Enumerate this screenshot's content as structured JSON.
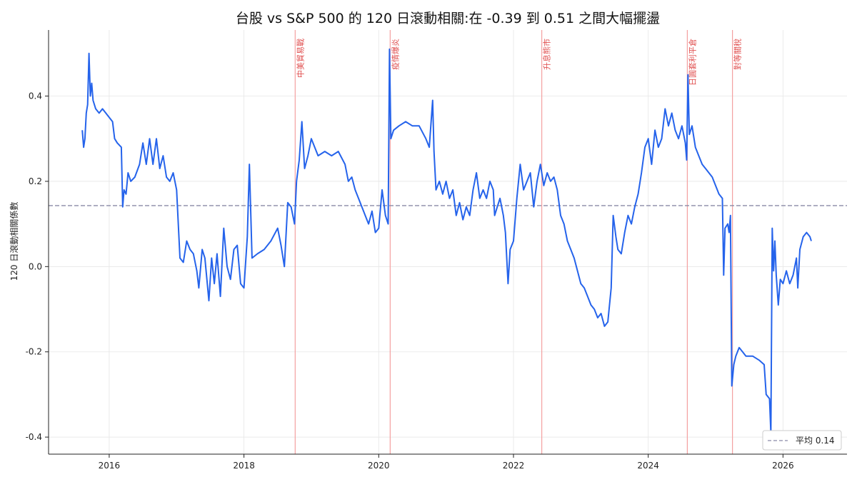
{
  "chart_data": {
    "type": "line",
    "title": "台股 vs S&P 500 的 120 日滾動相關:在 -0.39 到 0.51 之間大幅擺盪",
    "xlabel": "",
    "ylabel": "120 日滾動相關係數",
    "xlim": [
      2015.1,
      2026.95
    ],
    "ylim": [
      -0.44,
      0.555
    ],
    "x_ticks": [
      {
        "value": 2016,
        "label": "2016"
      },
      {
        "value": 2018,
        "label": "2018"
      },
      {
        "value": 2020,
        "label": "2020"
      },
      {
        "value": 2022,
        "label": "2022"
      },
      {
        "value": 2024,
        "label": "2024"
      },
      {
        "value": 2026,
        "label": "2026"
      }
    ],
    "y_ticks": [
      {
        "value": 0.4,
        "label": "0.4"
      },
      {
        "value": 0.2,
        "label": "0.2"
      },
      {
        "value": 0.0,
        "label": "0.0"
      },
      {
        "value": -0.2,
        "label": "-0.2"
      },
      {
        "value": -0.4,
        "label": "-0.4"
      }
    ],
    "grid": true,
    "series": [
      {
        "color": "#2563eb",
        "points": [
          [
            2015.6,
            0.32
          ],
          [
            2015.62,
            0.28
          ],
          [
            2015.64,
            0.3
          ],
          [
            2015.66,
            0.36
          ],
          [
            2015.68,
            0.38
          ],
          [
            2015.7,
            0.5
          ],
          [
            2015.72,
            0.4
          ],
          [
            2015.74,
            0.43
          ],
          [
            2015.76,
            0.39
          ],
          [
            2015.8,
            0.37
          ],
          [
            2015.85,
            0.36
          ],
          [
            2015.9,
            0.37
          ],
          [
            2015.95,
            0.36
          ],
          [
            2016.0,
            0.35
          ],
          [
            2016.05,
            0.34
          ],
          [
            2016.08,
            0.3
          ],
          [
            2016.12,
            0.29
          ],
          [
            2016.18,
            0.28
          ],
          [
            2016.2,
            0.14
          ],
          [
            2016.22,
            0.18
          ],
          [
            2016.25,
            0.17
          ],
          [
            2016.28,
            0.22
          ],
          [
            2016.32,
            0.2
          ],
          [
            2016.38,
            0.21
          ],
          [
            2016.45,
            0.24
          ],
          [
            2016.5,
            0.29
          ],
          [
            2016.55,
            0.24
          ],
          [
            2016.6,
            0.3
          ],
          [
            2016.65,
            0.24
          ],
          [
            2016.7,
            0.3
          ],
          [
            2016.75,
            0.23
          ],
          [
            2016.8,
            0.26
          ],
          [
            2016.85,
            0.21
          ],
          [
            2016.9,
            0.2
          ],
          [
            2016.95,
            0.22
          ],
          [
            2017.0,
            0.18
          ],
          [
            2017.05,
            0.02
          ],
          [
            2017.1,
            0.01
          ],
          [
            2017.15,
            0.06
          ],
          [
            2017.2,
            0.04
          ],
          [
            2017.25,
            0.03
          ],
          [
            2017.3,
            -0.01
          ],
          [
            2017.33,
            -0.05
          ],
          [
            2017.38,
            0.04
          ],
          [
            2017.42,
            0.02
          ],
          [
            2017.48,
            -0.08
          ],
          [
            2017.52,
            0.02
          ],
          [
            2017.56,
            -0.04
          ],
          [
            2017.6,
            0.03
          ],
          [
            2017.65,
            -0.07
          ],
          [
            2017.7,
            0.09
          ],
          [
            2017.75,
            0.0
          ],
          [
            2017.8,
            -0.03
          ],
          [
            2017.85,
            0.04
          ],
          [
            2017.9,
            0.05
          ],
          [
            2017.95,
            -0.04
          ],
          [
            2018.0,
            -0.05
          ],
          [
            2018.05,
            0.07
          ],
          [
            2018.08,
            0.24
          ],
          [
            2018.12,
            0.02
          ],
          [
            2018.2,
            0.03
          ],
          [
            2018.3,
            0.04
          ],
          [
            2018.4,
            0.06
          ],
          [
            2018.5,
            0.09
          ],
          [
            2018.55,
            0.05
          ],
          [
            2018.6,
            0.0
          ],
          [
            2018.65,
            0.15
          ],
          [
            2018.7,
            0.14
          ],
          [
            2018.75,
            0.1
          ],
          [
            2018.78,
            0.2
          ],
          [
            2018.82,
            0.25
          ],
          [
            2018.86,
            0.34
          ],
          [
            2018.9,
            0.23
          ],
          [
            2018.95,
            0.26
          ],
          [
            2019.0,
            0.3
          ],
          [
            2019.1,
            0.26
          ],
          [
            2019.2,
            0.27
          ],
          [
            2019.3,
            0.26
          ],
          [
            2019.4,
            0.27
          ],
          [
            2019.5,
            0.24
          ],
          [
            2019.55,
            0.2
          ],
          [
            2019.6,
            0.21
          ],
          [
            2019.65,
            0.18
          ],
          [
            2019.7,
            0.16
          ],
          [
            2019.75,
            0.14
          ],
          [
            2019.8,
            0.12
          ],
          [
            2019.85,
            0.1
          ],
          [
            2019.9,
            0.13
          ],
          [
            2019.95,
            0.08
          ],
          [
            2020.0,
            0.09
          ],
          [
            2020.05,
            0.18
          ],
          [
            2020.1,
            0.12
          ],
          [
            2020.14,
            0.1
          ],
          [
            2020.16,
            0.51
          ],
          [
            2020.18,
            0.3
          ],
          [
            2020.22,
            0.32
          ],
          [
            2020.3,
            0.33
          ],
          [
            2020.4,
            0.34
          ],
          [
            2020.5,
            0.33
          ],
          [
            2020.6,
            0.33
          ],
          [
            2020.7,
            0.3
          ],
          [
            2020.75,
            0.28
          ],
          [
            2020.8,
            0.39
          ],
          [
            2020.82,
            0.27
          ],
          [
            2020.85,
            0.18
          ],
          [
            2020.9,
            0.2
          ],
          [
            2020.95,
            0.17
          ],
          [
            2021.0,
            0.2
          ],
          [
            2021.05,
            0.16
          ],
          [
            2021.1,
            0.18
          ],
          [
            2021.15,
            0.12
          ],
          [
            2021.2,
            0.15
          ],
          [
            2021.25,
            0.11
          ],
          [
            2021.3,
            0.14
          ],
          [
            2021.35,
            0.12
          ],
          [
            2021.4,
            0.18
          ],
          [
            2021.45,
            0.22
          ],
          [
            2021.5,
            0.16
          ],
          [
            2021.55,
            0.18
          ],
          [
            2021.6,
            0.16
          ],
          [
            2021.65,
            0.2
          ],
          [
            2021.7,
            0.18
          ],
          [
            2021.72,
            0.12
          ],
          [
            2021.76,
            0.14
          ],
          [
            2021.8,
            0.16
          ],
          [
            2021.85,
            0.12
          ],
          [
            2021.88,
            0.08
          ],
          [
            2021.92,
            -0.04
          ],
          [
            2021.95,
            0.04
          ],
          [
            2022.0,
            0.06
          ],
          [
            2022.05,
            0.16
          ],
          [
            2022.1,
            0.24
          ],
          [
            2022.15,
            0.18
          ],
          [
            2022.2,
            0.2
          ],
          [
            2022.25,
            0.22
          ],
          [
            2022.3,
            0.14
          ],
          [
            2022.35,
            0.2
          ],
          [
            2022.4,
            0.24
          ],
          [
            2022.45,
            0.19
          ],
          [
            2022.5,
            0.22
          ],
          [
            2022.55,
            0.2
          ],
          [
            2022.6,
            0.21
          ],
          [
            2022.65,
            0.18
          ],
          [
            2022.7,
            0.12
          ],
          [
            2022.75,
            0.1
          ],
          [
            2022.8,
            0.06
          ],
          [
            2022.85,
            0.04
          ],
          [
            2022.9,
            0.02
          ],
          [
            2022.95,
            -0.01
          ],
          [
            2023.0,
            -0.04
          ],
          [
            2023.05,
            -0.05
          ],
          [
            2023.1,
            -0.07
          ],
          [
            2023.15,
            -0.09
          ],
          [
            2023.2,
            -0.1
          ],
          [
            2023.25,
            -0.12
          ],
          [
            2023.3,
            -0.11
          ],
          [
            2023.35,
            -0.14
          ],
          [
            2023.4,
            -0.13
          ],
          [
            2023.45,
            -0.05
          ],
          [
            2023.48,
            0.12
          ],
          [
            2023.52,
            0.07
          ],
          [
            2023.55,
            0.04
          ],
          [
            2023.6,
            0.03
          ],
          [
            2023.65,
            0.08
          ],
          [
            2023.7,
            0.12
          ],
          [
            2023.75,
            0.1
          ],
          [
            2023.8,
            0.14
          ],
          [
            2023.85,
            0.17
          ],
          [
            2023.9,
            0.22
          ],
          [
            2023.95,
            0.28
          ],
          [
            2024.0,
            0.3
          ],
          [
            2024.05,
            0.24
          ],
          [
            2024.1,
            0.32
          ],
          [
            2024.15,
            0.28
          ],
          [
            2024.2,
            0.3
          ],
          [
            2024.25,
            0.37
          ],
          [
            2024.3,
            0.33
          ],
          [
            2024.35,
            0.36
          ],
          [
            2024.4,
            0.32
          ],
          [
            2024.45,
            0.3
          ],
          [
            2024.5,
            0.33
          ],
          [
            2024.55,
            0.29
          ],
          [
            2024.57,
            0.25
          ],
          [
            2024.59,
            0.45
          ],
          [
            2024.61,
            0.31
          ],
          [
            2024.65,
            0.33
          ],
          [
            2024.7,
            0.28
          ],
          [
            2024.75,
            0.26
          ],
          [
            2024.8,
            0.24
          ],
          [
            2024.85,
            0.23
          ],
          [
            2024.9,
            0.22
          ],
          [
            2024.95,
            0.21
          ],
          [
            2025.0,
            0.19
          ],
          [
            2025.05,
            0.17
          ],
          [
            2025.1,
            0.16
          ],
          [
            2025.12,
            -0.02
          ],
          [
            2025.14,
            0.09
          ],
          [
            2025.18,
            0.1
          ],
          [
            2025.2,
            0.08
          ],
          [
            2025.22,
            0.12
          ],
          [
            2025.24,
            -0.28
          ],
          [
            2025.27,
            -0.23
          ],
          [
            2025.3,
            -0.21
          ],
          [
            2025.35,
            -0.19
          ],
          [
            2025.4,
            -0.2
          ],
          [
            2025.45,
            -0.21
          ],
          [
            2025.55,
            -0.21
          ],
          [
            2025.65,
            -0.22
          ],
          [
            2025.72,
            -0.23
          ],
          [
            2025.75,
            -0.3
          ],
          [
            2025.8,
            -0.31
          ],
          [
            2025.82,
            -0.39
          ],
          [
            2025.84,
            0.09
          ],
          [
            2025.86,
            -0.01
          ],
          [
            2025.88,
            0.06
          ],
          [
            2025.9,
            -0.02
          ],
          [
            2025.93,
            -0.09
          ],
          [
            2025.96,
            -0.03
          ],
          [
            2026.0,
            -0.04
          ],
          [
            2026.05,
            -0.01
          ],
          [
            2026.1,
            -0.04
          ],
          [
            2026.15,
            -0.02
          ],
          [
            2026.2,
            0.02
          ],
          [
            2026.22,
            -0.05
          ],
          [
            2026.25,
            0.04
          ],
          [
            2026.3,
            0.07
          ],
          [
            2026.35,
            0.08
          ],
          [
            2026.4,
            0.07
          ],
          [
            2026.42,
            0.06
          ]
        ]
      }
    ],
    "mean_line": {
      "value": 0.143,
      "color": "#8a8aa6"
    },
    "events": [
      {
        "x": 2018.76,
        "label": "中美貿易戰"
      },
      {
        "x": 2020.17,
        "label": "疫情爆炎"
      },
      {
        "x": 2022.42,
        "label": "升息熊市"
      },
      {
        "x": 2024.58,
        "label": "日圓套利平倉"
      },
      {
        "x": 2025.25,
        "label": "對等關稅"
      }
    ],
    "event_color": "#f4a0a0",
    "legend": {
      "position": "bottom-right",
      "label": "平均 0.14"
    }
  }
}
